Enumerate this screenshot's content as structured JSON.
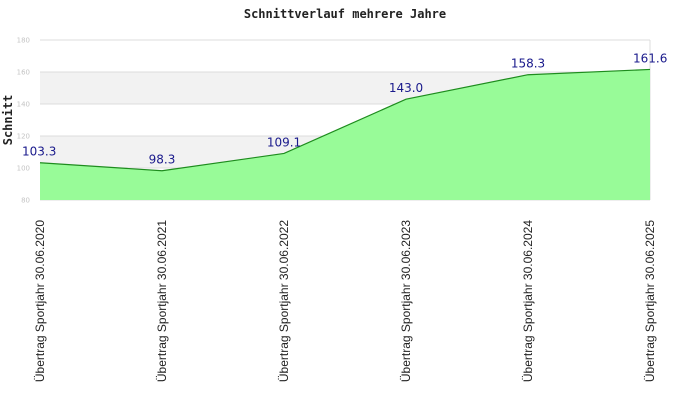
{
  "chart_data": {
    "type": "area",
    "title": "Schnittverlauf mehrere Jahre",
    "xlabel": "",
    "ylabel": "Schnitt",
    "categories": [
      "Übertrag Sportjahr 30.06.2020",
      "Übertrag Sportjahr 30.06.2021",
      "Übertrag Sportjahr 30.06.2022",
      "Übertrag Sportjahr 30.06.2023",
      "Übertrag Sportjahr 30.06.2024",
      "Übertrag Sportjahr 30.06.2025"
    ],
    "values": [
      103.3,
      98.3,
      109.1,
      143.0,
      158.3,
      161.6
    ],
    "data_labels": [
      "103.3",
      "98.3",
      "109.1",
      "143.0",
      "158.3",
      "161.6"
    ],
    "yticks": [
      80,
      100,
      120,
      140,
      160,
      180
    ],
    "ytick_labels": [
      "80",
      "100",
      "120",
      "140",
      "160",
      "180"
    ],
    "ylim": [
      80,
      180
    ],
    "grid": true,
    "legend": "none",
    "colors": {
      "fill": "#98fb98",
      "line": "#1e8c1e",
      "band_light": "#ffffff",
      "band_dark": "#f2f2f2",
      "grid": "#dcdcdc",
      "data_label": "#1a1a8c"
    }
  }
}
